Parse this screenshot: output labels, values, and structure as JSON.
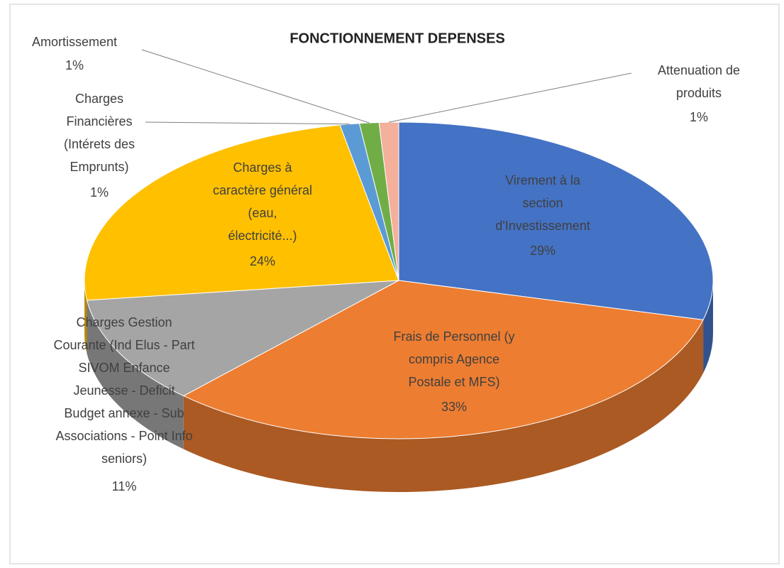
{
  "chart_data": {
    "type": "pie",
    "title": "FONCTIONNEMENT DEPENSES",
    "categories": [
      "Virement à la\nsection\nd'Investissement",
      "Frais de Personnel (y\ncompris Agence\nPostale et MFS)",
      "Charges Gestion\nCourante (Ind Elus - Part\nSIVOM Enfance\nJeunesse - Deficit\nBudget annexe - Sub\nAssociations - Point Info\nseniors)",
      "Charges à\ncaractère général\n(eau,\nélectricité...)",
      "Charges\nFinancières\n(Intérets des\nEmprunts)",
      "Amortissement",
      "Attenuation de\nproduits"
    ],
    "values": [
      29,
      33,
      11,
      24,
      1,
      1,
      1
    ],
    "value_labels": [
      "29%",
      "33%",
      "11%",
      "24%",
      "1%",
      "1%",
      "1%"
    ],
    "colors": [
      "#4472c4",
      "#ed7d31",
      "#a5a5a5",
      "#ffc000",
      "#5b9bd5",
      "#70ad47",
      "#f4b09a"
    ]
  }
}
